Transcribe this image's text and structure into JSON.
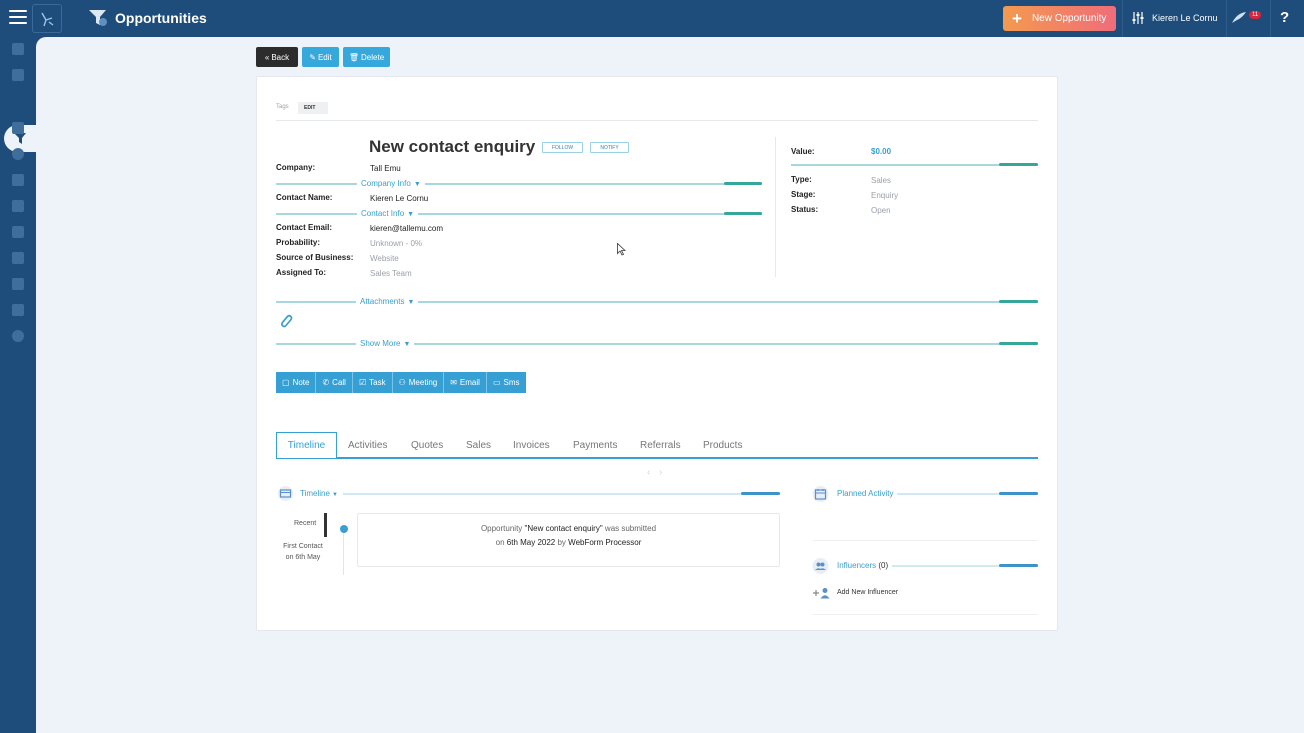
{
  "header": {
    "title": "Opportunities",
    "new_button": "New Opportunity",
    "user_name": "Kieren Le Cornu",
    "notification_count": "11",
    "help": "?"
  },
  "toolbar": {
    "back": "Back",
    "edit": "Edit",
    "delete": "Delete"
  },
  "tags": {
    "label": "Tags",
    "edit": "EDIT"
  },
  "opportunity": {
    "title": "New contact enquiry",
    "follow": "FOLLOW",
    "notify": "NOTIFY",
    "company_label": "Company:",
    "company": "Tall Emu",
    "company_info": "Company Info",
    "contact_name_label": "Contact Name:",
    "contact_name": "Kieren Le Cornu",
    "contact_info": "Contact Info",
    "contact_email_label": "Contact Email:",
    "contact_email": "kieren@tallemu.com",
    "probability_label": "Probability:",
    "probability": "Unknown - 0%",
    "source_label": "Source of Business:",
    "source": "Website",
    "assigned_label": "Assigned To:",
    "assigned": "Sales Team"
  },
  "summary": {
    "value_label": "Value:",
    "value": "$0.00",
    "type_label": "Type:",
    "type": "Sales",
    "stage_label": "Stage:",
    "stage": "Enquiry",
    "status_label": "Status:",
    "status": "Open"
  },
  "sections": {
    "attachments": "Attachments",
    "show_more": "Show More"
  },
  "actions": [
    "Note",
    "Call",
    "Task",
    "Meeting",
    "Email",
    "Sms"
  ],
  "tabs": [
    "Timeline",
    "Activities",
    "Quotes",
    "Sales",
    "Invoices",
    "Payments",
    "Referrals",
    "Products"
  ],
  "timeline": {
    "header": "Timeline",
    "recent": "Recent",
    "first_contact_1": "First Contact",
    "first_contact_2": "on 6th May",
    "entry_prefix": "Opportunity ",
    "entry_name": "\"New contact enquiry\"",
    "entry_suffix": " was submitted",
    "entry_on": "on ",
    "entry_date": "6th May 2022",
    "entry_by": " by ",
    "entry_author": "WebForm Processor"
  },
  "right_panel": {
    "planned_activity": "Planned Activity",
    "influencers": "Influencers",
    "influencers_count": "(0)",
    "add_influencer": "Add New Influencer"
  },
  "colors": {
    "nav": "#1e4d7b",
    "accent": "#36a0d5",
    "teal": "#35a79a",
    "new_button": "#ef6d7a"
  },
  "icons": [
    "menu-icon",
    "funnel-icon",
    "sliders-icon",
    "bird-icon",
    "paperclip-icon",
    "calendar-icon",
    "people-icon",
    "add-user-icon"
  ]
}
